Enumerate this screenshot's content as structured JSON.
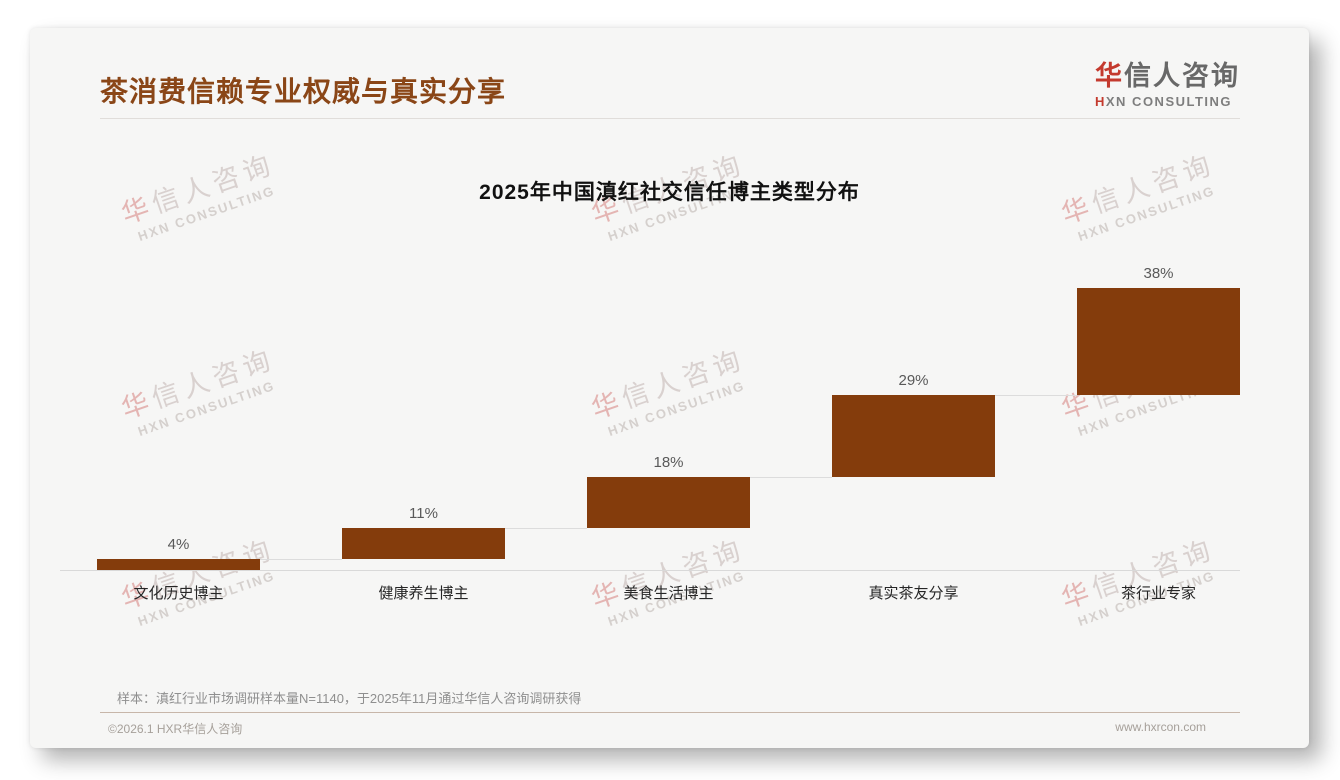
{
  "page": {
    "header": {
      "title": "茶消费信赖专业权威与真实分享"
    },
    "logo": {
      "zh_first": "华",
      "zh_rest": "信人咨询",
      "en_first": "H",
      "en_rest": "XN CONSULTING"
    },
    "watermark": {
      "zh_first": "华",
      "zh_rest": "信人咨询",
      "en": "HXN CONSULTING"
    },
    "footnote": "样本：滇红行业市场调研样本量N=1140，于2025年11月通过华信人咨询调研获得",
    "footer": {
      "copyright": "©2026.1 HXR华信人咨询",
      "website": "www.hxrcon.com"
    },
    "colors": {
      "title_brown": "#8a4617",
      "logo_red": "#c43a2e",
      "card_bg": "#f6f6f5",
      "footer_divider": "#c7b6a9"
    }
  },
  "chart_data": {
    "type": "bar",
    "subtype": "waterfall",
    "title": "2025年中国滇红社交信任博主类型分布",
    "categories": [
      "文化历史博主",
      "健康养生博主",
      "美食生活博主",
      "真实茶友分享",
      "茶行业专家"
    ],
    "values": [
      4,
      11,
      18,
      29,
      38
    ],
    "value_labels": [
      "4%",
      "11%",
      "18%",
      "29%",
      "38%"
    ],
    "cumulative": [
      4,
      15,
      33,
      62,
      100
    ],
    "bar_color": "#843c0c",
    "xlabel": "",
    "ylabel": "",
    "ylim": [
      0,
      100
    ],
    "grid": false,
    "legend": false,
    "baseline_color": "#d9d9d9",
    "connector_color": "#dcdcdc"
  }
}
